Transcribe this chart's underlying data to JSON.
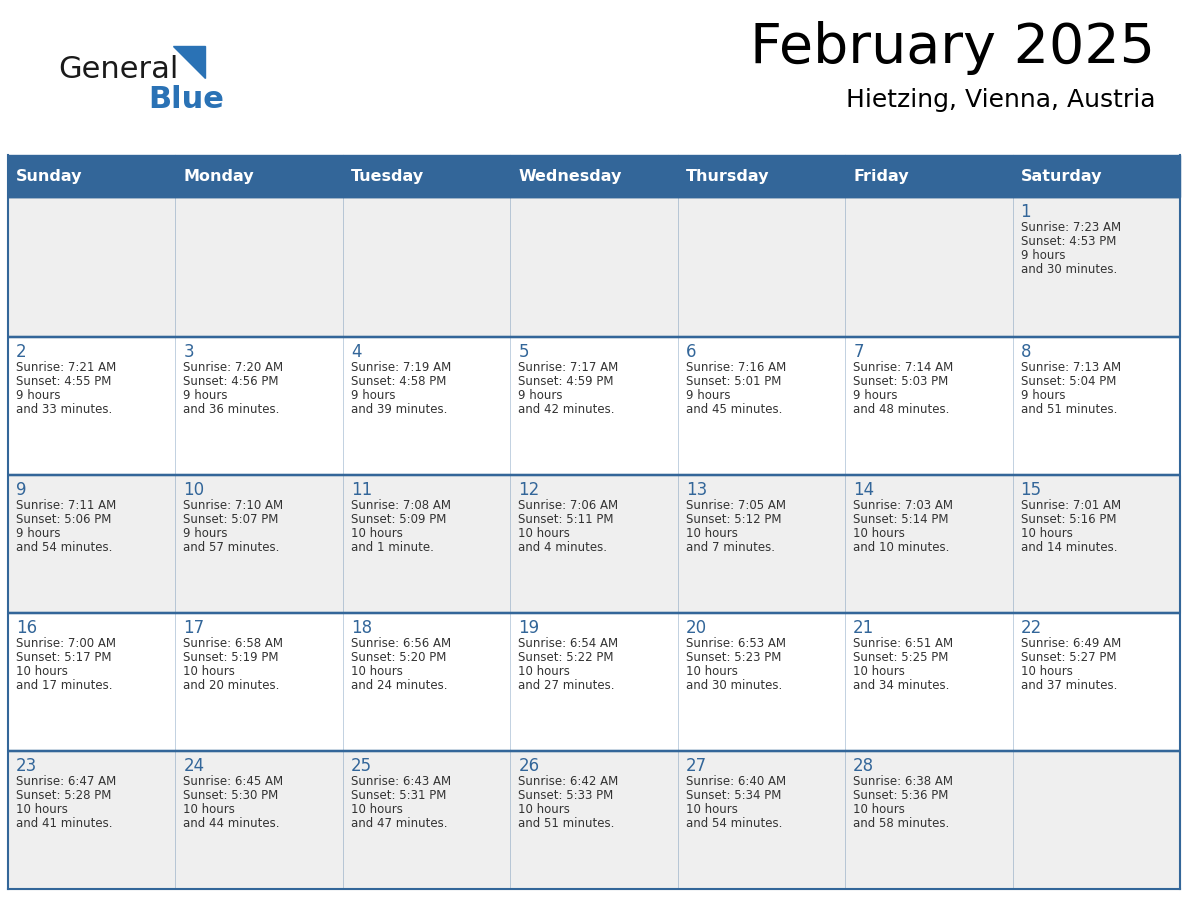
{
  "title": "February 2025",
  "subtitle": "Hietzing, Vienna, Austria",
  "days_of_week": [
    "Sunday",
    "Monday",
    "Tuesday",
    "Wednesday",
    "Thursday",
    "Friday",
    "Saturday"
  ],
  "header_bg": "#336699",
  "header_text": "#ffffff",
  "cell_bg_gray": "#efefef",
  "cell_bg_white": "#ffffff",
  "day_number_color": "#336699",
  "text_color": "#333333",
  "border_color": "#336699",
  "logo_general_color": "#1a1a1a",
  "logo_blue_color": "#2a72b5",
  "calendar_data": [
    [
      null,
      null,
      null,
      null,
      null,
      null,
      {
        "day": 1,
        "sunrise": "7:23 AM",
        "sunset": "4:53 PM",
        "daylight": "9 hours\nand 30 minutes."
      }
    ],
    [
      {
        "day": 2,
        "sunrise": "7:21 AM",
        "sunset": "4:55 PM",
        "daylight": "9 hours\nand 33 minutes."
      },
      {
        "day": 3,
        "sunrise": "7:20 AM",
        "sunset": "4:56 PM",
        "daylight": "9 hours\nand 36 minutes."
      },
      {
        "day": 4,
        "sunrise": "7:19 AM",
        "sunset": "4:58 PM",
        "daylight": "9 hours\nand 39 minutes."
      },
      {
        "day": 5,
        "sunrise": "7:17 AM",
        "sunset": "4:59 PM",
        "daylight": "9 hours\nand 42 minutes."
      },
      {
        "day": 6,
        "sunrise": "7:16 AM",
        "sunset": "5:01 PM",
        "daylight": "9 hours\nand 45 minutes."
      },
      {
        "day": 7,
        "sunrise": "7:14 AM",
        "sunset": "5:03 PM",
        "daylight": "9 hours\nand 48 minutes."
      },
      {
        "day": 8,
        "sunrise": "7:13 AM",
        "sunset": "5:04 PM",
        "daylight": "9 hours\nand 51 minutes."
      }
    ],
    [
      {
        "day": 9,
        "sunrise": "7:11 AM",
        "sunset": "5:06 PM",
        "daylight": "9 hours\nand 54 minutes."
      },
      {
        "day": 10,
        "sunrise": "7:10 AM",
        "sunset": "5:07 PM",
        "daylight": "9 hours\nand 57 minutes."
      },
      {
        "day": 11,
        "sunrise": "7:08 AM",
        "sunset": "5:09 PM",
        "daylight": "10 hours\nand 1 minute."
      },
      {
        "day": 12,
        "sunrise": "7:06 AM",
        "sunset": "5:11 PM",
        "daylight": "10 hours\nand 4 minutes."
      },
      {
        "day": 13,
        "sunrise": "7:05 AM",
        "sunset": "5:12 PM",
        "daylight": "10 hours\nand 7 minutes."
      },
      {
        "day": 14,
        "sunrise": "7:03 AM",
        "sunset": "5:14 PM",
        "daylight": "10 hours\nand 10 minutes."
      },
      {
        "day": 15,
        "sunrise": "7:01 AM",
        "sunset": "5:16 PM",
        "daylight": "10 hours\nand 14 minutes."
      }
    ],
    [
      {
        "day": 16,
        "sunrise": "7:00 AM",
        "sunset": "5:17 PM",
        "daylight": "10 hours\nand 17 minutes."
      },
      {
        "day": 17,
        "sunrise": "6:58 AM",
        "sunset": "5:19 PM",
        "daylight": "10 hours\nand 20 minutes."
      },
      {
        "day": 18,
        "sunrise": "6:56 AM",
        "sunset": "5:20 PM",
        "daylight": "10 hours\nand 24 minutes."
      },
      {
        "day": 19,
        "sunrise": "6:54 AM",
        "sunset": "5:22 PM",
        "daylight": "10 hours\nand 27 minutes."
      },
      {
        "day": 20,
        "sunrise": "6:53 AM",
        "sunset": "5:23 PM",
        "daylight": "10 hours\nand 30 minutes."
      },
      {
        "day": 21,
        "sunrise": "6:51 AM",
        "sunset": "5:25 PM",
        "daylight": "10 hours\nand 34 minutes."
      },
      {
        "day": 22,
        "sunrise": "6:49 AM",
        "sunset": "5:27 PM",
        "daylight": "10 hours\nand 37 minutes."
      }
    ],
    [
      {
        "day": 23,
        "sunrise": "6:47 AM",
        "sunset": "5:28 PM",
        "daylight": "10 hours\nand 41 minutes."
      },
      {
        "day": 24,
        "sunrise": "6:45 AM",
        "sunset": "5:30 PM",
        "daylight": "10 hours\nand 44 minutes."
      },
      {
        "day": 25,
        "sunrise": "6:43 AM",
        "sunset": "5:31 PM",
        "daylight": "10 hours\nand 47 minutes."
      },
      {
        "day": 26,
        "sunrise": "6:42 AM",
        "sunset": "5:33 PM",
        "daylight": "10 hours\nand 51 minutes."
      },
      {
        "day": 27,
        "sunrise": "6:40 AM",
        "sunset": "5:34 PM",
        "daylight": "10 hours\nand 54 minutes."
      },
      {
        "day": 28,
        "sunrise": "6:38 AM",
        "sunset": "5:36 PM",
        "daylight": "10 hours\nand 58 minutes."
      },
      null
    ]
  ]
}
